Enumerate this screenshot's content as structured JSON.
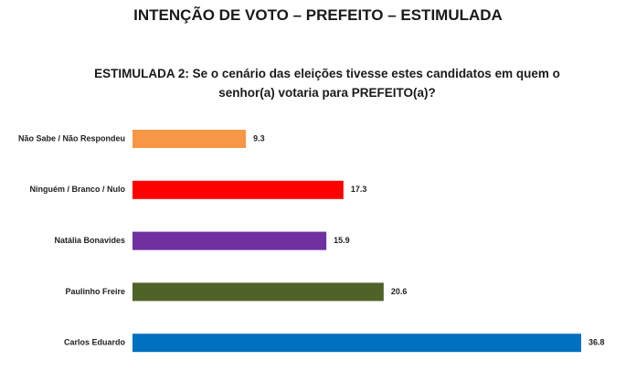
{
  "chart_data": {
    "type": "bar",
    "orientation": "horizontal",
    "title": "INTENÇÃO DE VOTO – PREFEITO – ESTIMULADA",
    "subtitle": "ESTIMULADA 2: Se o cenário das eleições tivesse estes candidatos em quem o senhor(a) votaria para PREFEITO(a)?",
    "categories": [
      "Não Sabe / Não Respondeu",
      "Ninguém / Branco / Nulo",
      "Natália Bonavides",
      "Paulinho Freire",
      "Carlos Eduardo"
    ],
    "values": [
      9.3,
      17.3,
      15.9,
      20.6,
      36.8
    ],
    "colors": [
      "#f79646",
      "#ff0000",
      "#7030a0",
      "#4f6228",
      "#0070c0"
    ]
  }
}
